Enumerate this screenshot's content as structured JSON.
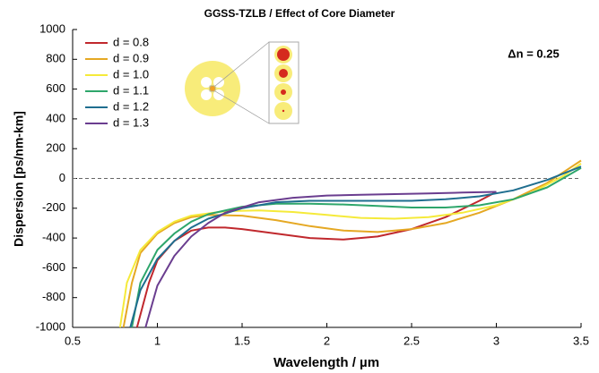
{
  "chart_data": {
    "type": "line",
    "title": "GGSS-TZLB / Effect of Core Diameter",
    "annotation": "Δn = 0.25",
    "x_label": "Wavelength / µm",
    "y_label": "Dispersion [ps/nm-km]",
    "xlim": [
      0.5,
      3.5
    ],
    "xticks": [
      0.5,
      1,
      1.5,
      2,
      2.5,
      3,
      3.5
    ],
    "ylim": [
      -1000,
      1000
    ],
    "yticks": [
      -1000,
      -800,
      -600,
      -400,
      -200,
      0,
      200,
      400,
      600,
      800,
      1000
    ],
    "zero_line": true,
    "legend": "upper left",
    "series": [
      {
        "name": "d = 0.8",
        "color": "#c0282d",
        "x": [
          0.88,
          0.95,
          1.0,
          1.1,
          1.2,
          1.3,
          1.4,
          1.5,
          1.7,
          1.9,
          2.1,
          2.3,
          2.5,
          2.7,
          2.9,
          3.0
        ],
        "values": [
          -1000,
          -700,
          -550,
          -420,
          -350,
          -330,
          -330,
          -340,
          -370,
          -400,
          -410,
          -390,
          -340,
          -260,
          -150,
          -90
        ]
      },
      {
        "name": "d = 0.9",
        "color": "#e5a823",
        "x": [
          0.8,
          0.85,
          0.9,
          1.0,
          1.1,
          1.2,
          1.3,
          1.5,
          1.7,
          1.9,
          2.1,
          2.3,
          2.5,
          2.7,
          2.9,
          3.1,
          3.3,
          3.5
        ],
        "values": [
          -1000,
          -700,
          -500,
          -370,
          -300,
          -260,
          -245,
          -250,
          -280,
          -320,
          -350,
          -360,
          -340,
          -300,
          -230,
          -140,
          -30,
          120
        ]
      },
      {
        "name": "d = 1.0",
        "color": "#f5ea3a",
        "x": [
          0.78,
          0.82,
          0.9,
          1.0,
          1.1,
          1.2,
          1.4,
          1.6,
          1.8,
          2.0,
          2.2,
          2.4,
          2.6,
          2.8,
          3.0,
          3.2,
          3.4,
          3.5
        ],
        "values": [
          -1000,
          -700,
          -480,
          -360,
          -290,
          -250,
          -220,
          -215,
          -225,
          -245,
          -265,
          -270,
          -260,
          -230,
          -180,
          -100,
          20,
          100
        ]
      },
      {
        "name": "d = 1.1",
        "color": "#2ea66b",
        "x": [
          0.85,
          0.9,
          1.0,
          1.1,
          1.2,
          1.3,
          1.5,
          1.7,
          1.9,
          2.1,
          2.3,
          2.5,
          2.7,
          2.9,
          3.1,
          3.3,
          3.5
        ],
        "values": [
          -1000,
          -700,
          -480,
          -370,
          -290,
          -240,
          -190,
          -170,
          -170,
          -175,
          -185,
          -195,
          -195,
          -180,
          -140,
          -60,
          70
        ]
      },
      {
        "name": "d = 1.2",
        "color": "#1f6e8f",
        "x": [
          0.84,
          0.9,
          1.0,
          1.1,
          1.2,
          1.3,
          1.5,
          1.7,
          1.9,
          2.1,
          2.3,
          2.5,
          2.7,
          2.9,
          3.1,
          3.3,
          3.5
        ],
        "values": [
          -1000,
          -750,
          -540,
          -420,
          -330,
          -270,
          -200,
          -160,
          -150,
          -150,
          -150,
          -150,
          -140,
          -120,
          -80,
          -10,
          80
        ]
      },
      {
        "name": "d = 1.3",
        "color": "#6a3d8f",
        "x": [
          0.93,
          1.0,
          1.1,
          1.2,
          1.3,
          1.4,
          1.6,
          1.8,
          2.0,
          2.2,
          2.4,
          2.6,
          2.8,
          3.0
        ],
        "values": [
          -1000,
          -720,
          -520,
          -390,
          -300,
          -230,
          -160,
          -130,
          -115,
          -110,
          -105,
          -100,
          -95,
          -90
        ]
      }
    ]
  }
}
